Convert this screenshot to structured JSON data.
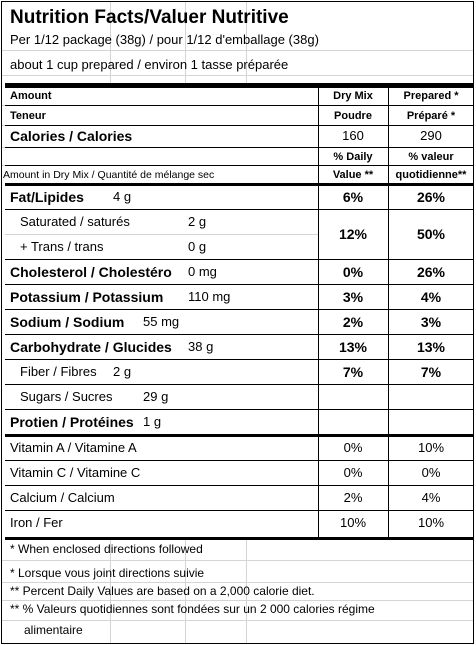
{
  "header": {
    "title": "Nutrition Facts/Valuer Nutritive",
    "serving": "Per 1/12 package (38g) / pour 1/12 d'emballage (38g)",
    "prepared_note": "about 1 cup prepared / environ 1 tasse préparée"
  },
  "columns": {
    "amount": "Amount",
    "teneur": "Teneur",
    "dry_mix": "Dry Mix",
    "poudre": "Poudre",
    "prepared": "Prepared *",
    "prepare_fr": "Préparé *",
    "percent_daily": "% Daily",
    "percent_valeur": "% valeur",
    "amount_dry_mix": "Amount in Dry Mix / Quantité de mélange sec",
    "value": "Value **",
    "quotidienne": "quotidienne**"
  },
  "calories": {
    "label": "Calories / Calories",
    "dry_mix": "160",
    "prepared": "290"
  },
  "fat": {
    "label": "Fat/Lipides",
    "amount": "4 g",
    "dry_mix": "6%",
    "prepared": "26%"
  },
  "saturated_trans": {
    "saturated_label": "Saturated / saturés",
    "saturated_amount": "2 g",
    "trans_label": "+ Trans / trans",
    "trans_amount": "0 g",
    "dry_mix": "12%",
    "prepared": "50%"
  },
  "cholesterol": {
    "label": "Cholesterol / Cholestéro",
    "amount": "0 mg",
    "dry_mix": "0%",
    "prepared": "26%"
  },
  "potassium": {
    "label": "Potassium / Potassium",
    "amount": "110 mg",
    "dry_mix": "3%",
    "prepared": "4%"
  },
  "sodium": {
    "label": "Sodium / Sodium",
    "amount": "55 mg",
    "dry_mix": "2%",
    "prepared": "3%"
  },
  "carbohydrate": {
    "label": "Carbohydrate / Glucides",
    "amount": "38 g",
    "dry_mix": "13%",
    "prepared": "13%"
  },
  "fiber": {
    "label": "Fiber / Fibres",
    "amount": "2 g",
    "dry_mix": "7%",
    "prepared": "7%"
  },
  "sugars": {
    "label": "Sugars / Sucres",
    "amount": "29 g"
  },
  "protein": {
    "label": "Protien / Protéines",
    "amount": "1 g"
  },
  "vitamins": [
    {
      "label": "Vitamin A / Vitamine A",
      "dry_mix": "0%",
      "prepared": "10%"
    },
    {
      "label": "Vitamin C / Vitamine C",
      "dry_mix": "0%",
      "prepared": "0%"
    },
    {
      "label": "Calcium / Calcium",
      "dry_mix": "2%",
      "prepared": "4%"
    },
    {
      "label": "Iron / Fer",
      "dry_mix": "10%",
      "prepared": "10%"
    }
  ],
  "footnotes": [
    "* When enclosed directions followed",
    "* Lorsque vous joint directions suivie",
    "** Percent Daily Values are based on a 2,000 calorie diet.",
    "** % Valeurs quotidiennes sont fondées sur un 2 000 calories régime",
    "alimentaire"
  ]
}
